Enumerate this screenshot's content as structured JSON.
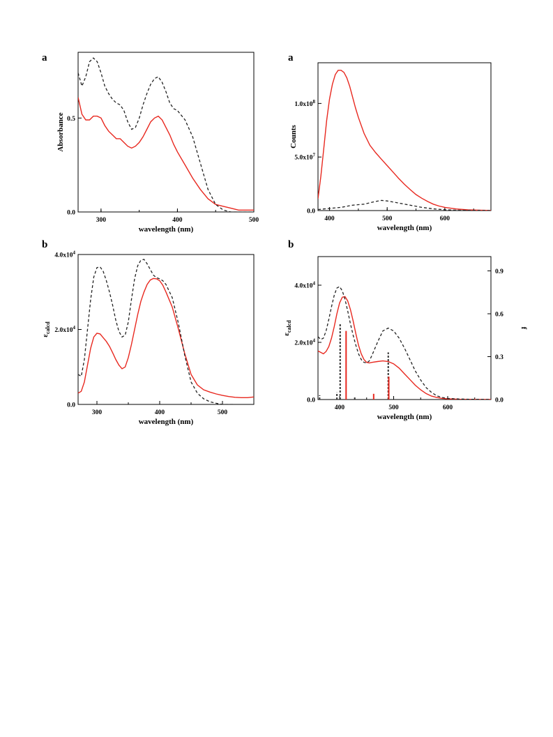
{
  "chart_data": [
    {
      "panel_label": "a",
      "type": "line",
      "xlabel": "wavelength (nm)",
      "ylabel": "Absorbance",
      "xlim": [
        270,
        500
      ],
      "ylim": [
        0,
        0.85
      ],
      "xticks": [
        {
          "v": 300,
          "label": "300"
        },
        {
          "v": 400,
          "label": "400"
        },
        {
          "v": 500,
          "label": "500"
        }
      ],
      "yticks": [
        {
          "v": 0,
          "label": "0.0"
        },
        {
          "v": 0.5,
          "label": "0.5"
        }
      ],
      "series": [
        {
          "style": "solid",
          "color": "#e8281f",
          "x": [
            270,
            275,
            280,
            285,
            290,
            295,
            300,
            305,
            310,
            315,
            320,
            325,
            330,
            335,
            340,
            345,
            350,
            355,
            360,
            365,
            370,
            375,
            380,
            385,
            390,
            395,
            400,
            410,
            420,
            430,
            440,
            450,
            460,
            470,
            480,
            490,
            500
          ],
          "y": [
            0.61,
            0.52,
            0.49,
            0.49,
            0.51,
            0.51,
            0.5,
            0.46,
            0.43,
            0.41,
            0.39,
            0.39,
            0.37,
            0.35,
            0.34,
            0.35,
            0.37,
            0.4,
            0.44,
            0.48,
            0.5,
            0.51,
            0.49,
            0.45,
            0.41,
            0.36,
            0.32,
            0.25,
            0.18,
            0.12,
            0.07,
            0.04,
            0.03,
            0.02,
            0.01,
            0.01,
            0.01
          ]
        },
        {
          "style": "dashed",
          "color": "#222222",
          "x": [
            270,
            275,
            280,
            285,
            290,
            295,
            300,
            305,
            310,
            315,
            320,
            325,
            330,
            335,
            340,
            345,
            350,
            355,
            360,
            365,
            370,
            375,
            380,
            385,
            390,
            395,
            400,
            410,
            420,
            430,
            440,
            450,
            460,
            470,
            480,
            490,
            500
          ],
          "y": [
            0.74,
            0.67,
            0.72,
            0.8,
            0.82,
            0.8,
            0.74,
            0.67,
            0.63,
            0.6,
            0.58,
            0.57,
            0.54,
            0.48,
            0.44,
            0.45,
            0.5,
            0.57,
            0.63,
            0.68,
            0.71,
            0.72,
            0.69,
            0.64,
            0.58,
            0.55,
            0.54,
            0.49,
            0.4,
            0.26,
            0.12,
            0.04,
            0.01,
            0.0,
            0.0,
            0.0,
            0.0
          ]
        }
      ]
    },
    {
      "panel_label": "a",
      "type": "line",
      "xlabel": "wavelength (nm)",
      "ylabel": "Counts",
      "xlim": [
        380,
        680
      ],
      "ylim": [
        0,
        138000000.0
      ],
      "xticks": [
        {
          "v": 400,
          "label": "400"
        },
        {
          "v": 500,
          "label": "500"
        },
        {
          "v": 600,
          "label": "600"
        }
      ],
      "yticks": [
        {
          "v": 0,
          "label": "0.0"
        },
        {
          "v": 50000000.0,
          "label": "5.0x10",
          "sup": "7"
        },
        {
          "v": 100000000.0,
          "label": "1.0x10",
          "sup": "8"
        }
      ],
      "series": [
        {
          "style": "solid",
          "color": "#e8281f",
          "x": [
            380,
            385,
            390,
            395,
            400,
            405,
            410,
            415,
            420,
            425,
            430,
            435,
            440,
            445,
            450,
            460,
            470,
            480,
            490,
            500,
            510,
            520,
            530,
            540,
            550,
            560,
            570,
            580,
            590,
            600,
            620,
            640,
            660,
            680
          ],
          "y": [
            11000000.0,
            32000000.0,
            58000000.0,
            84000000.0,
            104000000.0,
            118000000.0,
            127000000.0,
            131000000.0,
            131000000.0,
            129000000.0,
            124000000.0,
            116000000.0,
            106000000.0,
            96000000.0,
            87000000.0,
            72000000.0,
            61000000.0,
            54000000.0,
            48000000.0,
            42000000.0,
            36000000.0,
            30000000.0,
            24500000.0,
            19500000.0,
            15000000.0,
            11500000.0,
            8500000.0,
            6000000.0,
            4200000.0,
            3000000.0,
            1500000.0,
            700000.0,
            300000.0,
            100000.0
          ]
        },
        {
          "style": "dashed",
          "color": "#222222",
          "x": [
            380,
            400,
            420,
            440,
            460,
            480,
            490,
            500,
            520,
            540,
            560,
            580,
            600,
            620,
            640,
            660,
            680
          ],
          "y": [
            1000000.0,
            2000000.0,
            3000000.0,
            5000000.0,
            6000000.0,
            8500000.0,
            9500000.0,
            9000000.0,
            7000000.0,
            5000000.0,
            3000000.0,
            1600000.0,
            800000.0,
            400000.0,
            200000.0,
            100000.0,
            0
          ]
        }
      ]
    },
    {
      "panel_label": "b",
      "type": "line",
      "xlabel": "wavelength (nm)",
      "ylabel": "ε",
      "ylabel_sub": "calcd",
      "xlim": [
        270,
        550
      ],
      "ylim": [
        0,
        40000
      ],
      "xticks": [
        {
          "v": 300,
          "label": "300"
        },
        {
          "v": 400,
          "label": "400"
        },
        {
          "v": 500,
          "label": "500"
        }
      ],
      "yticks": [
        {
          "v": 0,
          "label": "0.0"
        },
        {
          "v": 20000,
          "label": "2.0x10",
          "sup": "4"
        },
        {
          "v": 40000,
          "label": "4.0x10",
          "sup": "4"
        }
      ],
      "series": [
        {
          "style": "solid",
          "color": "#e8281f",
          "x": [
            270,
            275,
            280,
            285,
            290,
            295,
            300,
            305,
            310,
            315,
            320,
            325,
            330,
            335,
            340,
            345,
            350,
            355,
            360,
            365,
            370,
            375,
            380,
            385,
            390,
            395,
            400,
            405,
            410,
            420,
            430,
            440,
            450,
            460,
            470,
            480,
            490,
            500,
            510,
            520,
            530,
            540,
            550
          ],
          "y": [
            3000,
            3500,
            6000,
            10500,
            15000,
            18000,
            19000,
            18800,
            17800,
            16800,
            15500,
            13800,
            12000,
            10500,
            9500,
            10000,
            12500,
            16000,
            20000,
            24000,
            27500,
            30000,
            32000,
            33200,
            33600,
            33500,
            33000,
            31800,
            30000,
            26000,
            20000,
            13500,
            8000,
            5200,
            3900,
            3300,
            2800,
            2400,
            2100,
            1900,
            1800,
            1800,
            2000
          ]
        },
        {
          "style": "dashed",
          "color": "#222222",
          "x": [
            270,
            275,
            280,
            285,
            290,
            295,
            300,
            305,
            310,
            315,
            320,
            325,
            330,
            335,
            340,
            345,
            350,
            355,
            360,
            365,
            370,
            375,
            380,
            385,
            390,
            395,
            400,
            405,
            410,
            420,
            430,
            440,
            450,
            460,
            470,
            480,
            490,
            500,
            510,
            520
          ],
          "y": [
            8000,
            7500,
            12000,
            20000,
            28000,
            34000,
            36500,
            36700,
            35500,
            33000,
            30000,
            26500,
            22500,
            19500,
            18000,
            18500,
            22000,
            28000,
            33500,
            37000,
            38500,
            38700,
            37500,
            36000,
            34500,
            33800,
            33500,
            33000,
            32000,
            28500,
            21500,
            13000,
            6000,
            3000,
            1500,
            700,
            300,
            0,
            0,
            0
          ]
        }
      ]
    },
    {
      "panel_label": "b",
      "type": "line",
      "xlabel": "wavelength (nm)",
      "ylabel": "ε",
      "ylabel_sub": "calcd",
      "y2label": "f",
      "xlim": [
        360,
        680
      ],
      "ylim": [
        0,
        50000
      ],
      "y2lim": [
        0,
        1.0
      ],
      "xticks": [
        {
          "v": 400,
          "label": "400"
        },
        {
          "v": 500,
          "label": "500"
        },
        {
          "v": 600,
          "label": "600"
        }
      ],
      "yticks": [
        {
          "v": 0,
          "label": "0.0"
        },
        {
          "v": 20000,
          "label": "2.0x10",
          "sup": "4"
        },
        {
          "v": 40000,
          "label": "4.0x10",
          "sup": "4"
        }
      ],
      "y2ticks": [
        {
          "v": 0,
          "label": "0.0"
        },
        {
          "v": 0.3,
          "label": "0.3"
        },
        {
          "v": 0.6,
          "label": "0.6"
        },
        {
          "v": 0.9,
          "label": "0.9"
        }
      ],
      "series": [
        {
          "style": "solid",
          "color": "#e8281f",
          "x": [
            360,
            365,
            370,
            375,
            380,
            385,
            390,
            395,
            400,
            405,
            410,
            415,
            420,
            425,
            430,
            435,
            440,
            445,
            450,
            455,
            460,
            470,
            480,
            490,
            500,
            510,
            520,
            530,
            540,
            550,
            560,
            570,
            580,
            590,
            600,
            620,
            640,
            660,
            680
          ],
          "y": [
            17000,
            16500,
            16000,
            16800,
            18500,
            21500,
            25500,
            30000,
            33800,
            35800,
            36000,
            34500,
            31500,
            27500,
            23000,
            19000,
            16000,
            14000,
            13000,
            12800,
            13000,
            13300,
            13500,
            13300,
            12500,
            11000,
            9000,
            7000,
            5000,
            3400,
            2100,
            1200,
            700,
            400,
            250,
            100,
            80,
            60,
            50
          ]
        },
        {
          "style": "dashed",
          "color": "#222222",
          "x": [
            360,
            365,
            370,
            375,
            380,
            385,
            390,
            395,
            400,
            405,
            410,
            415,
            420,
            425,
            430,
            435,
            440,
            445,
            450,
            455,
            460,
            470,
            480,
            490,
            500,
            510,
            520,
            530,
            540,
            550,
            560,
            570,
            580,
            590,
            600,
            620,
            640,
            660,
            680
          ],
          "y": [
            22000,
            21000,
            21500,
            24000,
            28000,
            32500,
            36500,
            39000,
            39500,
            38000,
            35000,
            31000,
            26500,
            22500,
            19000,
            16000,
            14000,
            13000,
            12800,
            13500,
            15500,
            20000,
            24000,
            25000,
            24000,
            21500,
            18000,
            14000,
            10000,
            6800,
            4200,
            2500,
            1300,
            700,
            400,
            200,
            100,
            50,
            30
          ]
        }
      ],
      "sticks": [
        {
          "x": 363,
          "f": 0.03,
          "style": "dark"
        },
        {
          "x": 395,
          "f": 0.05,
          "style": "dark"
        },
        {
          "x": 401,
          "f": 0.53,
          "style": "dark"
        },
        {
          "x": 412,
          "f": 0.48,
          "style": "red"
        },
        {
          "x": 428,
          "f": 0.02,
          "style": "dark"
        },
        {
          "x": 463,
          "f": 0.04,
          "style": "red"
        },
        {
          "x": 490,
          "f": 0.33,
          "style": "dark"
        },
        {
          "x": 491,
          "f": 0.16,
          "style": "red"
        }
      ]
    }
  ]
}
